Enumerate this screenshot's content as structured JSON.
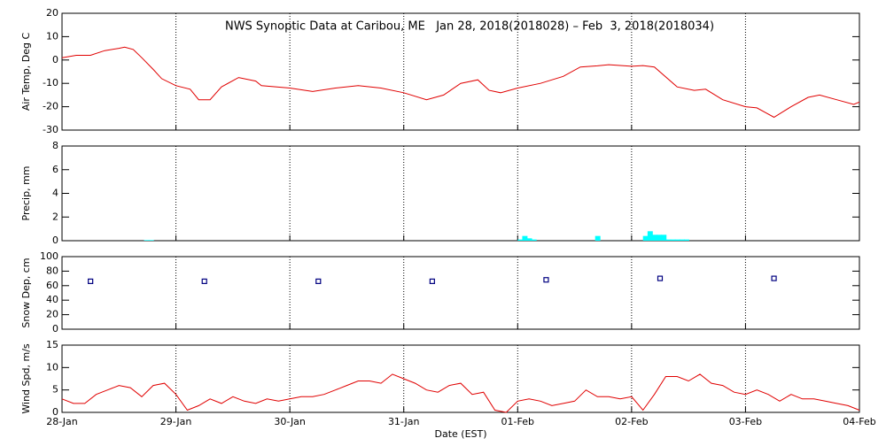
{
  "chart_data": [
    {
      "type": "line",
      "title": "NWS Synoptic Data at Caribou, ME   Jan 28, 2018(2018028) – Feb  3, 2018(2018034)",
      "ylabel": "Air Temp, Deg C",
      "color": "#e00000",
      "x": [
        0,
        0.125,
        0.25,
        0.375,
        0.5,
        0.55,
        0.625,
        0.7,
        0.8,
        0.875,
        1.0,
        1.125,
        1.2,
        1.3,
        1.4,
        1.55,
        1.7,
        1.75,
        2.0,
        2.2,
        2.4,
        2.6,
        2.8,
        3.0,
        3.2,
        3.35,
        3.5,
        3.65,
        3.75,
        3.85,
        4.0,
        4.2,
        4.4,
        4.55,
        4.7,
        4.8,
        5.0,
        5.1,
        5.2,
        5.4,
        5.55,
        5.65,
        5.8,
        6.0,
        6.1,
        6.25,
        6.4,
        6.55,
        6.65,
        6.8,
        6.95,
        7.0
      ],
      "values": [
        1,
        2,
        2,
        4,
        5,
        5.5,
        4.5,
        1,
        -4,
        -8,
        -11,
        -12.5,
        -17,
        -17,
        -11.5,
        -7.5,
        -9,
        -11,
        -12,
        -13.5,
        -12,
        -11,
        -12,
        -14,
        -17,
        -15,
        -10,
        -8.5,
        -13,
        -14,
        -12,
        -10,
        -7,
        -3,
        -2.5,
        -2,
        -2.7,
        -2.4,
        -3,
        -11.5,
        -13,
        -12.5,
        -17,
        -20,
        -20.5,
        -24.5,
        -20,
        -16,
        -15,
        -17,
        -19,
        -18
      ],
      "xlim": [
        0,
        7
      ],
      "xticks": [
        0,
        1,
        2,
        3,
        4,
        5,
        6,
        7
      ],
      "ylim": [
        -30,
        20
      ],
      "yticks": [
        -30,
        -20,
        -10,
        0,
        10,
        20
      ],
      "grid": true
    },
    {
      "type": "bar",
      "ylabel": "Precip, mm",
      "color": "#00ffff",
      "x": [
        0.72,
        0.76,
        4.0,
        4.04,
        4.08,
        4.12,
        4.68,
        5.1,
        5.14,
        5.18,
        5.22,
        5.26,
        5.3,
        5.34,
        5.38,
        5.42,
        5.46
      ],
      "values": [
        0.05,
        0.05,
        0.1,
        0.4,
        0.2,
        0.1,
        0.4,
        0.4,
        0.8,
        0.5,
        0.5,
        0.5,
        0.1,
        0.1,
        0.1,
        0.1,
        0.1
      ],
      "xlim": [
        0,
        7
      ],
      "xticks": [
        0,
        1,
        2,
        3,
        4,
        5,
        6,
        7
      ],
      "ylim": [
        0,
        8
      ],
      "yticks": [
        0,
        2,
        4,
        6,
        8
      ],
      "grid": true
    },
    {
      "type": "scatter",
      "ylabel": "Snow Dep, cm",
      "color": "#000080",
      "x": [
        0.25,
        1.25,
        2.25,
        3.25,
        4.25,
        5.25,
        6.25
      ],
      "values": [
        66,
        66,
        66,
        66,
        68,
        70,
        70
      ],
      "xlim": [
        0,
        7
      ],
      "xticks": [
        0,
        1,
        2,
        3,
        4,
        5,
        6,
        7
      ],
      "ylim": [
        0,
        100
      ],
      "yticks": [
        0,
        20,
        40,
        60,
        80,
        100
      ],
      "grid": true
    },
    {
      "type": "line",
      "ylabel": "Wind Spd, m/s",
      "xlabel": "Date (EST)",
      "color": "#e00000",
      "x": [
        0,
        0.1,
        0.2,
        0.3,
        0.4,
        0.5,
        0.6,
        0.7,
        0.8,
        0.9,
        1.0,
        1.1,
        1.2,
        1.3,
        1.4,
        1.5,
        1.6,
        1.7,
        1.8,
        1.9,
        2.0,
        2.1,
        2.2,
        2.3,
        2.4,
        2.5,
        2.6,
        2.7,
        2.8,
        2.9,
        3.0,
        3.1,
        3.2,
        3.3,
        3.4,
        3.5,
        3.6,
        3.7,
        3.8,
        3.9,
        4.0,
        4.1,
        4.2,
        4.3,
        4.4,
        4.5,
        4.6,
        4.7,
        4.8,
        4.9,
        5.0,
        5.1,
        5.2,
        5.3,
        5.4,
        5.5,
        5.6,
        5.7,
        5.8,
        5.9,
        6.0,
        6.1,
        6.2,
        6.3,
        6.4,
        6.5,
        6.6,
        6.7,
        6.8,
        6.9,
        7.0
      ],
      "values": [
        3,
        2,
        2,
        4,
        5,
        6,
        5.5,
        3.5,
        6,
        6.5,
        4,
        0.5,
        1.5,
        3,
        2,
        3.5,
        2.5,
        2,
        3,
        2.5,
        3,
        3.5,
        3.5,
        4,
        5,
        6,
        7,
        7,
        6.5,
        8.5,
        7.5,
        6.5,
        5,
        4.5,
        6,
        6.5,
        4,
        4.5,
        0.5,
        0,
        2.5,
        3,
        2.5,
        1.5,
        2,
        2.5,
        5,
        3.5,
        3.5,
        3,
        3.5,
        0.5,
        4,
        8,
        8,
        7,
        8.5,
        6.5,
        6,
        4.5,
        4,
        5,
        4,
        2.5,
        4,
        3,
        3,
        2.5,
        2,
        1.5,
        0.5
      ],
      "xlim": [
        0,
        7
      ],
      "xticks": [
        {
          "value": 0,
          "label": "28-Jan"
        },
        {
          "value": 1,
          "label": "29-Jan"
        },
        {
          "value": 2,
          "label": "30-Jan"
        },
        {
          "value": 3,
          "label": "31-Jan"
        },
        {
          "value": 4,
          "label": "01-Feb"
        },
        {
          "value": 5,
          "label": "02-Feb"
        },
        {
          "value": 6,
          "label": "03-Feb"
        },
        {
          "value": 7,
          "label": "04-Feb"
        }
      ],
      "ylim": [
        0,
        15
      ],
      "yticks": [
        0,
        5,
        10,
        15
      ],
      "grid": true
    }
  ]
}
